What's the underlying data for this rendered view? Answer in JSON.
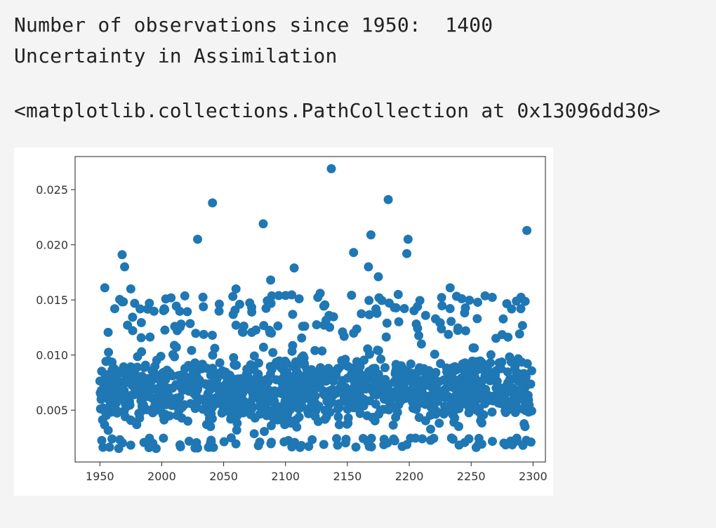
{
  "output": {
    "line1": "Number of observations since 1950:  1400",
    "line2": "Uncertainty in Assimilation",
    "repr": "<matplotlib.collections.PathCollection at 0x13096dd30>"
  },
  "chart_data": {
    "type": "scatter",
    "title": "",
    "xlabel": "",
    "ylabel": "",
    "xlim": [
      1930,
      2310
    ],
    "ylim": [
      0.0003,
      0.028
    ],
    "xticks": [
      1950,
      2000,
      2050,
      2100,
      2150,
      2200,
      2250,
      2300
    ],
    "yticks": [
      0.005,
      0.01,
      0.015,
      0.02,
      0.025
    ],
    "xtick_labels": [
      "1950",
      "2000",
      "2050",
      "2100",
      "2150",
      "2200",
      "2250",
      "2300"
    ],
    "ytick_labels": [
      "0.005",
      "0.010",
      "0.015",
      "0.020",
      "0.025"
    ],
    "grid": false,
    "legend": "none",
    "marker_color": "#1f77b4",
    "n_points": 1400,
    "outliers": {
      "x": [
        2137,
        2183,
        2041,
        2082,
        2029,
        2169,
        2295,
        2199,
        2198,
        1968,
        2155,
        2107,
        2167,
        1970,
        2175,
        1954,
        1975,
        2088,
        2233,
        2060,
        2111,
        1990,
        2002,
        2128,
        2063,
        1962,
        2188
      ],
      "y": [
        0.0269,
        0.0241,
        0.0238,
        0.0219,
        0.0205,
        0.0209,
        0.0213,
        0.0205,
        0.0192,
        0.0191,
        0.0193,
        0.0179,
        0.018,
        0.018,
        0.0171,
        0.0161,
        0.016,
        0.0168,
        0.0161,
        0.016,
        0.0151,
        0.0147,
        0.0142,
        0.0156,
        0.0146,
        0.0142,
        0.0143
      ]
    },
    "bulk_distribution": {
      "x_range": [
        1950,
        2300
      ],
      "y_min": 0.0015,
      "y_typical_range": [
        0.0025,
        0.0115
      ],
      "y_upper_tail": 0.0155
    }
  }
}
